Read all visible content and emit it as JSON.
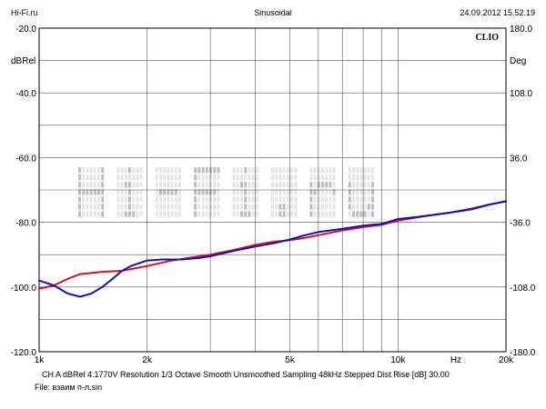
{
  "header": {
    "left": "Hi-Fi.ru",
    "center": "Sinusoidal",
    "right": "24.09.2012 15.52.19"
  },
  "footer": {
    "info_line": "CH A   dBRel 4.1770V   Resolution 1/3 Octave   Smooth Unsmoothed   Sampling 48kHz   Stepped   Dist Rise [dB] 30.00",
    "file_line": "File: взаим п-л.sin"
  },
  "watermark": "Hi-Fi.ru",
  "chart_data": {
    "type": "line",
    "title": "Sinusoidal",
    "brand_label": "CLIO",
    "xscale": "log",
    "xlim": [
      1000,
      20000
    ],
    "x_unit_label": "Hz",
    "x_tick_labels": [
      {
        "value": 1000,
        "label": "1k"
      },
      {
        "value": 2000,
        "label": "2k"
      },
      {
        "value": 5000,
        "label": "5k"
      },
      {
        "value": 10000,
        "label": "10k"
      },
      {
        "value": 20000,
        "label": "20k"
      }
    ],
    "x_gridlines": [
      1000,
      2000,
      3000,
      4000,
      5000,
      6000,
      7000,
      8000,
      9000,
      10000,
      20000
    ],
    "ylabel_left": "dBRel",
    "ylim_left": [
      -120,
      -20
    ],
    "y_ticks_left": [
      "-20.0",
      "-40.0",
      "-60.0",
      "-80.0",
      "-100.0",
      "-120.0"
    ],
    "ylabel_right": "Deg",
    "ylim_right": [
      -180,
      180
    ],
    "y_ticks_right": [
      "180.0",
      "108.0",
      "36.0",
      "-36.0",
      "-108.0",
      "-180.0"
    ],
    "grid": true,
    "colors": {
      "red": "#dd1111",
      "blue": "#1111bb"
    },
    "series": [
      {
        "color": "red",
        "x": [
          1000,
          1100,
          1200,
          1300,
          1500,
          1700,
          2000,
          2300,
          2600,
          3000,
          3500,
          4000,
          4500,
          5000,
          5500,
          6000,
          7000,
          8000,
          9000,
          10000,
          11000,
          12000,
          14000,
          16000,
          18000,
          20000
        ],
        "y": [
          -100.5,
          -99.5,
          -97.5,
          -96.0,
          -95.3,
          -95.0,
          -93.5,
          -92.0,
          -91.0,
          -90.0,
          -88.5,
          -87.0,
          -86.0,
          -85.5,
          -84.8,
          -84.0,
          -82.5,
          -81.5,
          -80.8,
          -79.5,
          -78.7,
          -78.0,
          -77.0,
          -75.8,
          -74.5,
          -73.5
        ]
      },
      {
        "color": "blue",
        "x": [
          1000,
          1100,
          1200,
          1300,
          1400,
          1500,
          1600,
          1700,
          1800,
          2000,
          2200,
          2500,
          2800,
          3000,
          3500,
          4000,
          4500,
          5000,
          5500,
          6000,
          7000,
          8000,
          9000,
          10000,
          11000,
          12000,
          14000,
          16000,
          18000,
          20000
        ],
        "y": [
          -98.0,
          -99.5,
          -102.0,
          -103.0,
          -102.0,
          -100.0,
          -97.5,
          -95.0,
          -93.5,
          -91.8,
          -91.5,
          -91.5,
          -91.0,
          -90.5,
          -88.8,
          -87.5,
          -86.5,
          -85.3,
          -84.0,
          -83.0,
          -82.0,
          -81.0,
          -80.5,
          -79.0,
          -78.5,
          -78.0,
          -77.0,
          -76.0,
          -74.5,
          -73.5
        ]
      }
    ]
  }
}
